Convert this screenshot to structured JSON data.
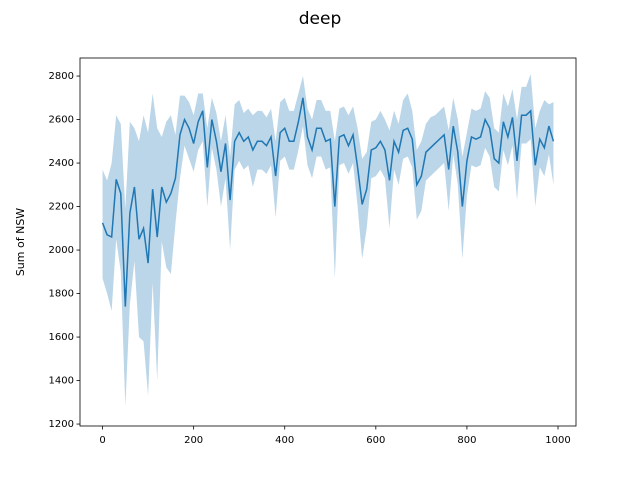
{
  "chart_data": {
    "type": "line",
    "title": "deep",
    "ylabel": "Sum of NSW",
    "x": [
      0,
      10,
      20,
      30,
      40,
      50,
      60,
      70,
      80,
      90,
      100,
      110,
      120,
      130,
      140,
      150,
      160,
      170,
      180,
      190,
      200,
      210,
      220,
      230,
      240,
      250,
      260,
      270,
      280,
      290,
      300,
      310,
      320,
      330,
      340,
      350,
      360,
      370,
      380,
      390,
      400,
      410,
      420,
      430,
      440,
      450,
      460,
      470,
      480,
      490,
      500,
      510,
      520,
      530,
      540,
      550,
      560,
      570,
      580,
      590,
      600,
      610,
      620,
      630,
      640,
      650,
      660,
      670,
      680,
      690,
      700,
      710,
      720,
      730,
      740,
      750,
      760,
      770,
      780,
      790,
      800,
      810,
      820,
      830,
      840,
      850,
      860,
      870,
      880,
      890,
      900,
      910,
      920,
      930,
      940,
      950,
      960,
      970,
      980,
      990
    ],
    "values": [
      2125,
      2070,
      2060,
      2325,
      2260,
      1740,
      2170,
      2290,
      2050,
      2100,
      1940,
      2280,
      2060,
      2290,
      2220,
      2260,
      2330,
      2530,
      2600,
      2560,
      2490,
      2590,
      2640,
      2380,
      2600,
      2500,
      2360,
      2490,
      2230,
      2500,
      2540,
      2500,
      2520,
      2460,
      2500,
      2500,
      2480,
      2520,
      2340,
      2540,
      2560,
      2500,
      2500,
      2590,
      2700,
      2520,
      2460,
      2560,
      2560,
      2500,
      2510,
      2200,
      2520,
      2530,
      2480,
      2530,
      2380,
      2210,
      2280,
      2460,
      2470,
      2500,
      2460,
      2320,
      2500,
      2450,
      2550,
      2560,
      2510,
      2300,
      2340,
      2450,
      2470,
      2490,
      2510,
      2530,
      2370,
      2570,
      2450,
      2200,
      2410,
      2520,
      2510,
      2520,
      2600,
      2560,
      2420,
      2400,
      2590,
      2520,
      2610,
      2410,
      2620,
      2620,
      2640,
      2390,
      2510,
      2470,
      2570,
      2500
    ],
    "lower": [
      1870,
      1800,
      1720,
      2050,
      1900,
      1280,
      1750,
      1950,
      1600,
      1580,
      1330,
      1850,
      1400,
      2040,
      1920,
      1890,
      2120,
      2330,
      2480,
      2420,
      2360,
      2460,
      2500,
      2200,
      2470,
      2370,
      2200,
      2330,
      2000,
      2370,
      2410,
      2370,
      2390,
      2290,
      2370,
      2370,
      2350,
      2390,
      2150,
      2410,
      2430,
      2370,
      2370,
      2460,
      2570,
      2390,
      2330,
      2430,
      2430,
      2370,
      2380,
      1870,
      2390,
      2400,
      2350,
      2400,
      2200,
      1960,
      2100,
      2330,
      2340,
      2370,
      2330,
      2100,
      2370,
      2300,
      2420,
      2430,
      2380,
      2140,
      2180,
      2320,
      2340,
      2360,
      2380,
      2400,
      2180,
      2440,
      2300,
      1960,
      2250,
      2390,
      2380,
      2390,
      2470,
      2430,
      2290,
      2270,
      2460,
      2390,
      2480,
      2230,
      2490,
      2490,
      2510,
      2200,
      2380,
      2340,
      2440,
      2300
    ],
    "upper": [
      2370,
      2320,
      2400,
      2620,
      2580,
      2190,
      2590,
      2560,
      2500,
      2620,
      2540,
      2720,
      2560,
      2520,
      2590,
      2620,
      2530,
      2710,
      2710,
      2680,
      2620,
      2720,
      2720,
      2560,
      2700,
      2630,
      2500,
      2620,
      2430,
      2670,
      2690,
      2630,
      2650,
      2620,
      2640,
      2640,
      2610,
      2650,
      2500,
      2680,
      2700,
      2640,
      2640,
      2720,
      2800,
      2650,
      2600,
      2690,
      2690,
      2640,
      2640,
      2500,
      2650,
      2660,
      2620,
      2660,
      2560,
      2420,
      2450,
      2590,
      2600,
      2640,
      2600,
      2550,
      2640,
      2580,
      2690,
      2720,
      2640,
      2460,
      2500,
      2580,
      2610,
      2620,
      2640,
      2660,
      2550,
      2700,
      2600,
      2430,
      2540,
      2650,
      2640,
      2650,
      2730,
      2700,
      2560,
      2540,
      2720,
      2660,
      2740,
      2600,
      2750,
      2750,
      2810,
      2560,
      2640,
      2690,
      2670,
      2680
    ],
    "color": "#1f77b4",
    "xlim": [
      -49.5,
      1039.5
    ],
    "xticks": [
      0,
      200,
      400,
      600,
      800,
      1000
    ],
    "ylim": [
      1191,
      2883
    ],
    "yticks": [
      1200,
      1400,
      1600,
      1800,
      2000,
      2200,
      2400,
      2600,
      2800
    ]
  }
}
